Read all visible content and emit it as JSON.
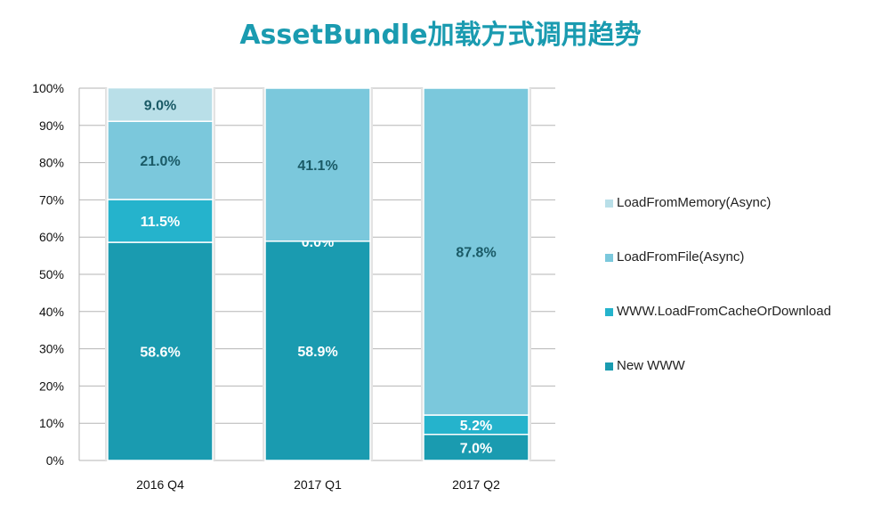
{
  "title": "AssetBundle加载方式调用趋势",
  "chart_data": {
    "type": "bar",
    "stacked": "percent",
    "categories": [
      "2016 Q4",
      "2017 Q1",
      "2017 Q2"
    ],
    "series": [
      {
        "name": "New WWW",
        "color": "#1a9bb0",
        "values": [
          58.6,
          58.9,
          7.0
        ],
        "labels": [
          "58.6%",
          "58.9%",
          "7.0%"
        ]
      },
      {
        "name": "WWW.LoadFromCacheOrDownload",
        "color": "#25b3cc",
        "values": [
          11.5,
          0.0,
          5.2
        ],
        "labels": [
          "11.5%",
          "0.0%",
          "5.2%"
        ]
      },
      {
        "name": "LoadFromFile(Async)",
        "color": "#7bc8dc",
        "values": [
          21.0,
          41.1,
          87.8
        ],
        "labels": [
          "21.0%",
          "41.1%",
          "87.8%"
        ]
      },
      {
        "name": "LoadFromMemory(Async)",
        "color": "#b9dfe8",
        "values": [
          9.0,
          0.0,
          0.0
        ],
        "labels": [
          "9.0%",
          "",
          ""
        ]
      }
    ],
    "y_ticks": [
      "0%",
      "10%",
      "20%",
      "30%",
      "40%",
      "50%",
      "60%",
      "70%",
      "80%",
      "90%",
      "100%"
    ],
    "ylim": [
      0,
      100
    ],
    "grid": true,
    "legend_position": "right"
  }
}
